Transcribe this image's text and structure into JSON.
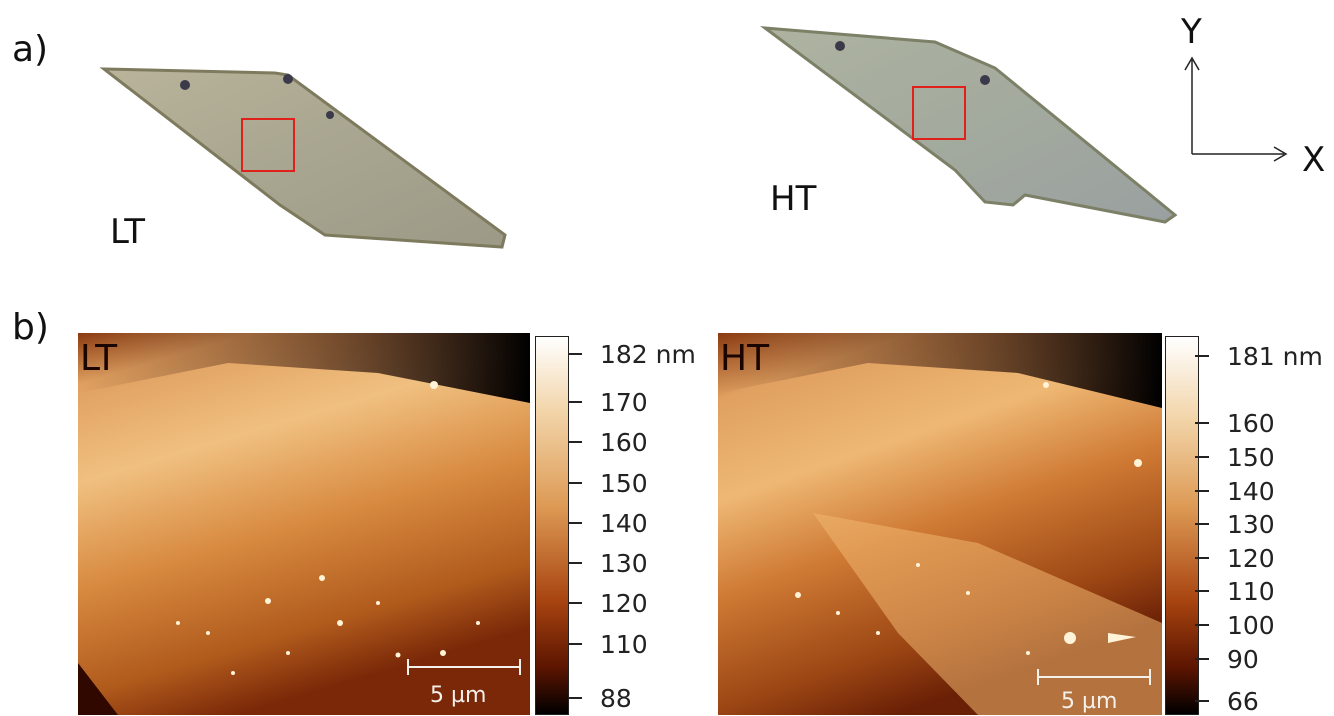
{
  "panels": {
    "a_label": "a)",
    "b_label": "b)"
  },
  "optical": {
    "left_label": "LT",
    "right_label": "HT",
    "axis_y": "Y",
    "axis_x": "X",
    "roi_color": "#e0201a"
  },
  "afm": {
    "left": {
      "corner_label": "LT",
      "scale_bar": "5 µm",
      "colorbar_ticks": [
        "182 nm",
        "170",
        "160",
        "150",
        "140",
        "130",
        "120",
        "110",
        "88"
      ]
    },
    "right": {
      "corner_label": "HT",
      "scale_bar": "5 µm",
      "colorbar_ticks": [
        "181 nm",
        "160",
        "150",
        "140",
        "130",
        "120",
        "110",
        "100",
        "90",
        "66"
      ]
    },
    "colormap": [
      "#000000",
      "#5a1400",
      "#a84410",
      "#d98a3a",
      "#f2c98a",
      "#ffffff"
    ]
  }
}
